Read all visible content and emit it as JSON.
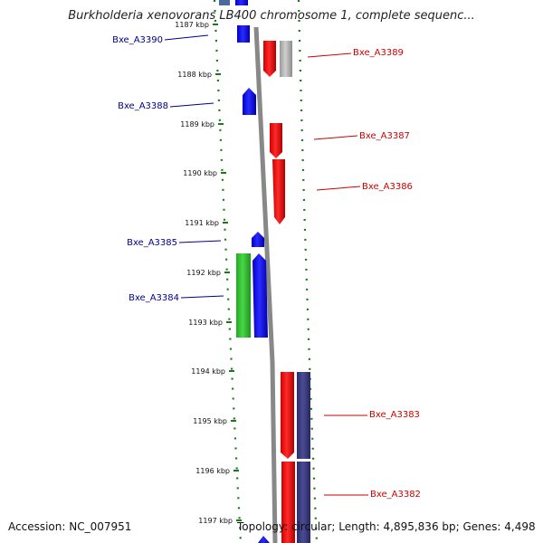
{
  "title": "Burkholderia xenovorans LB400 chromosome 1, complete sequenc...",
  "accession": "Accession: NC_007951",
  "topology": "Topology: circular; Length: 4,895,836 bp; Genes: 4,498",
  "colors": {
    "forward_gene": "#ff0000",
    "reverse_gene": "#0000ff",
    "green_gene": "#33cc33",
    "grey_gene": "#b0b0b0",
    "navy_gene": "#3a3a80",
    "tick": "#1a7a1a",
    "backbone": "#888888"
  },
  "ticks": [
    {
      "label": "1187 kbp"
    },
    {
      "label": "1188 kbp"
    },
    {
      "label": "1189 kbp"
    },
    {
      "label": "1190 kbp"
    },
    {
      "label": "1191 kbp"
    },
    {
      "label": "1192 kbp"
    },
    {
      "label": "1193 kbp"
    },
    {
      "label": "1194 kbp"
    },
    {
      "label": "1195 kbp"
    },
    {
      "label": "1196 kbp"
    },
    {
      "label": "1197 kbp"
    }
  ],
  "genes": [
    {
      "label": "Bxe_A3390",
      "strand": "reverse"
    },
    {
      "label": "Bxe_A3389",
      "strand": "forward"
    },
    {
      "label": "Bxe_A3388",
      "strand": "reverse"
    },
    {
      "label": "Bxe_A3387",
      "strand": "forward"
    },
    {
      "label": "Bxe_A3386",
      "strand": "forward"
    },
    {
      "label": "Bxe_A3385",
      "strand": "reverse"
    },
    {
      "label": "Bxe_A3384",
      "strand": "reverse"
    },
    {
      "label": "Bxe_A3383",
      "strand": "forward"
    },
    {
      "label": "Bxe_A3382",
      "strand": "forward"
    }
  ]
}
